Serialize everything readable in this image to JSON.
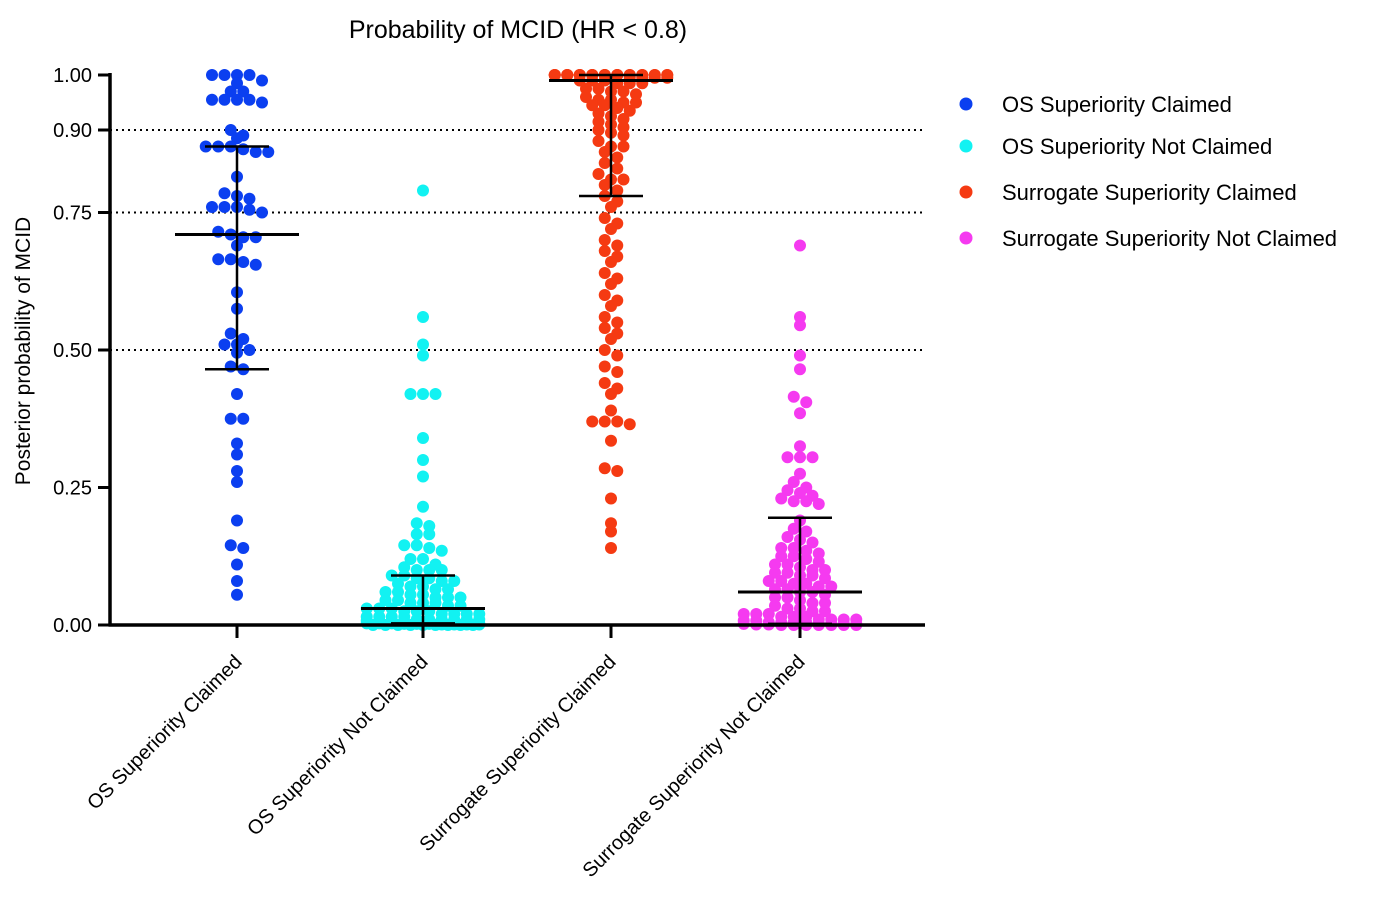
{
  "chart_data": {
    "type": "scatter",
    "title": "Probability of MCID (HR < 0.8)",
    "ylabel": "Posterior probability of MCID",
    "xlabel": "",
    "ylim": [
      0,
      1
    ],
    "yticks": [
      0,
      0.25,
      0.5,
      0.75,
      0.9,
      1.0
    ],
    "ytick_labels": [
      "0.00",
      "0.25",
      "0.50",
      "0.75",
      "0.90",
      "1.00"
    ],
    "reference_lines": [
      0.5,
      0.75,
      0.9
    ],
    "categories": [
      "OS Superiority Claimed",
      "OS Superiority Not Claimed",
      "Surrogate Superiority Claimed",
      "Surrogate Superiority Not Claimed"
    ],
    "legend_position": "right",
    "series": [
      {
        "name": "OS Superiority Claimed",
        "color": "#0b3ff0",
        "summary": {
          "median": 0.71,
          "q1": 0.465,
          "q3": 0.87
        },
        "values": [
          1.0,
          1.0,
          1.0,
          1.0,
          0.99,
          0.985,
          0.97,
          0.97,
          0.955,
          0.955,
          0.955,
          0.955,
          0.95,
          0.9,
          0.89,
          0.885,
          0.87,
          0.87,
          0.87,
          0.865,
          0.86,
          0.86,
          0.815,
          0.785,
          0.78,
          0.775,
          0.76,
          0.76,
          0.76,
          0.755,
          0.75,
          0.715,
          0.71,
          0.705,
          0.705,
          0.69,
          0.665,
          0.665,
          0.66,
          0.655,
          0.605,
          0.575,
          0.53,
          0.52,
          0.51,
          0.51,
          0.5,
          0.495,
          0.47,
          0.465,
          0.42,
          0.375,
          0.375,
          0.33,
          0.31,
          0.28,
          0.26,
          0.19,
          0.145,
          0.14,
          0.11,
          0.08,
          0.055
        ]
      },
      {
        "name": "OS Superiority Not Claimed",
        "color": "#12f2f2",
        "summary": {
          "median": 0.03,
          "q1": 0.003,
          "q3": 0.09
        },
        "values": [
          0.79,
          0.56,
          0.51,
          0.49,
          0.42,
          0.42,
          0.42,
          0.34,
          0.3,
          0.27,
          0.215,
          0.185,
          0.18,
          0.165,
          0.165,
          0.145,
          0.145,
          0.14,
          0.135,
          0.12,
          0.12,
          0.11,
          0.105,
          0.1,
          0.1,
          0.1,
          0.09,
          0.09,
          0.085,
          0.085,
          0.08,
          0.08,
          0.075,
          0.07,
          0.07,
          0.065,
          0.065,
          0.06,
          0.06,
          0.055,
          0.055,
          0.05,
          0.05,
          0.05,
          0.045,
          0.045,
          0.04,
          0.04,
          0.04,
          0.035,
          0.035,
          0.03,
          0.03,
          0.03,
          0.025,
          0.025,
          0.025,
          0.02,
          0.02,
          0.02,
          0.02,
          0.015,
          0.015,
          0.015,
          0.015,
          0.01,
          0.01,
          0.01,
          0.01,
          0.01,
          0.01,
          0.008,
          0.008,
          0.008,
          0.005,
          0.005,
          0.005,
          0.005,
          0.005,
          0.005,
          0.003,
          0.003,
          0.003,
          0.003,
          0.002,
          0.002,
          0.002,
          0.001,
          0.001,
          0.001,
          0.001,
          0.0,
          0.0,
          0.0,
          0.0,
          0.0,
          0.0,
          0.0,
          0.0,
          0.0
        ]
      },
      {
        "name": "Surrogate Superiority Claimed",
        "color": "#f53a12",
        "summary": {
          "median": 0.99,
          "q1": 0.78,
          "q3": 1.0
        },
        "values": [
          1.0,
          1.0,
          1.0,
          1.0,
          1.0,
          1.0,
          1.0,
          1.0,
          1.0,
          1.0,
          1.0,
          1.0,
          1.0,
          1.0,
          1.0,
          1.0,
          1.0,
          1.0,
          1.0,
          1.0,
          1.0,
          1.0,
          1.0,
          1.0,
          1.0,
          1.0,
          0.995,
          0.995,
          0.995,
          0.995,
          0.99,
          0.99,
          0.99,
          0.985,
          0.985,
          0.985,
          0.975,
          0.975,
          0.97,
          0.97,
          0.965,
          0.96,
          0.955,
          0.955,
          0.95,
          0.95,
          0.945,
          0.945,
          0.94,
          0.935,
          0.93,
          0.925,
          0.92,
          0.915,
          0.91,
          0.905,
          0.9,
          0.895,
          0.89,
          0.88,
          0.87,
          0.87,
          0.86,
          0.85,
          0.84,
          0.83,
          0.82,
          0.81,
          0.81,
          0.8,
          0.79,
          0.78,
          0.77,
          0.76,
          0.74,
          0.73,
          0.72,
          0.7,
          0.69,
          0.68,
          0.67,
          0.66,
          0.64,
          0.63,
          0.62,
          0.6,
          0.59,
          0.58,
          0.56,
          0.55,
          0.54,
          0.53,
          0.52,
          0.5,
          0.49,
          0.47,
          0.46,
          0.44,
          0.43,
          0.42,
          0.39,
          0.37,
          0.37,
          0.37,
          0.365,
          0.335,
          0.285,
          0.28,
          0.23,
          0.185,
          0.17,
          0.14
        ]
      },
      {
        "name": "Surrogate Superiority Not Claimed",
        "color": "#f53af0",
        "summary": {
          "median": 0.06,
          "q1": 0.002,
          "q3": 0.195
        },
        "values": [
          0.69,
          0.56,
          0.545,
          0.49,
          0.465,
          0.415,
          0.405,
          0.385,
          0.325,
          0.305,
          0.305,
          0.305,
          0.275,
          0.26,
          0.25,
          0.245,
          0.24,
          0.235,
          0.23,
          0.225,
          0.225,
          0.22,
          0.19,
          0.175,
          0.17,
          0.16,
          0.155,
          0.15,
          0.14,
          0.14,
          0.135,
          0.13,
          0.125,
          0.125,
          0.12,
          0.115,
          0.11,
          0.11,
          0.105,
          0.1,
          0.1,
          0.095,
          0.095,
          0.09,
          0.09,
          0.085,
          0.08,
          0.08,
          0.075,
          0.075,
          0.07,
          0.07,
          0.065,
          0.065,
          0.06,
          0.06,
          0.055,
          0.05,
          0.05,
          0.045,
          0.04,
          0.04,
          0.035,
          0.03,
          0.03,
          0.025,
          0.025,
          0.02,
          0.02,
          0.02,
          0.015,
          0.015,
          0.015,
          0.01,
          0.01,
          0.01,
          0.01,
          0.008,
          0.008,
          0.005,
          0.005,
          0.005,
          0.005,
          0.003,
          0.003,
          0.003,
          0.002,
          0.002,
          0.001,
          0.001,
          0.0,
          0.0,
          0.0,
          0.0,
          0.0,
          0.0,
          0.0
        ]
      }
    ]
  }
}
